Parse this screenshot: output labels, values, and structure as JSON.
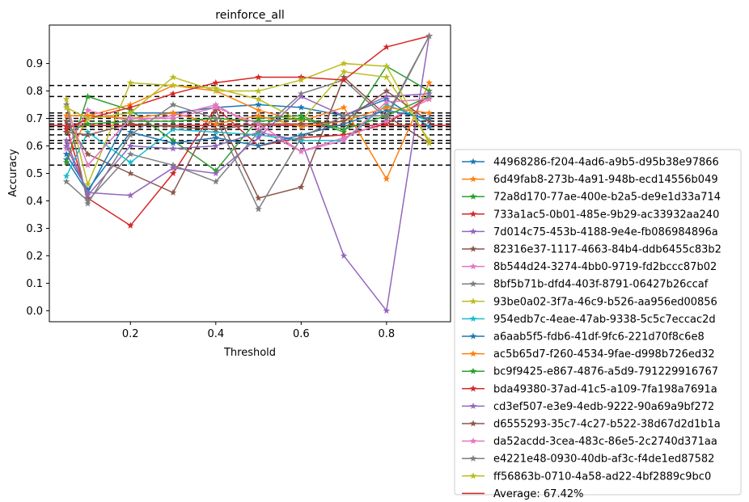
{
  "chart_data": {
    "type": "line",
    "title": "reinforce_all",
    "xlabel": "Threshold",
    "ylabel": "Accuracy",
    "xlim": [
      0.01,
      0.95
    ],
    "ylim": [
      -0.04,
      1.04
    ],
    "x_ticks": [
      0.2,
      0.4,
      0.6,
      0.8
    ],
    "x_tick_labels": [
      "0.2",
      "0.4",
      "0.6",
      "0.8"
    ],
    "y_ticks": [
      0.0,
      0.1,
      0.2,
      0.3,
      0.4,
      0.5,
      0.6,
      0.7,
      0.8,
      0.9
    ],
    "y_tick_labels": [
      "0.0",
      "0.1",
      "0.2",
      "0.3",
      "0.4",
      "0.5",
      "0.6",
      "0.7",
      "0.8",
      "0.9"
    ],
    "grid": false,
    "legend_position": "outside-right",
    "x": [
      0.05,
      0.1,
      0.2,
      0.3,
      0.4,
      0.5,
      0.6,
      0.7,
      0.8,
      0.9
    ],
    "hlines": [
      0.82,
      0.78,
      0.72,
      0.71,
      0.7,
      0.69,
      0.68,
      0.67,
      0.66,
      0.64,
      0.62,
      0.61,
      0.59,
      0.53
    ],
    "series": [
      {
        "name": "44968286-f204-4ad6-a9b5-d95b38e97866",
        "color": "#1f77b4",
        "values": [
          0.55,
          0.43,
          0.72,
          0.72,
          0.74,
          0.75,
          0.74,
          0.71,
          0.77,
          0.67
        ]
      },
      {
        "name": "6d49fab8-273b-4a91-948b-ecd14556b049",
        "color": "#ff7f0e",
        "values": [
          0.54,
          0.71,
          0.75,
          0.82,
          0.8,
          0.73,
          0.69,
          0.74,
          0.48,
          0.83
        ]
      },
      {
        "name": "72a8d170-77ae-400e-b2a5-de9e1d33a714",
        "color": "#2ca02c",
        "values": [
          0.54,
          0.78,
          0.73,
          0.62,
          0.51,
          0.7,
          0.71,
          0.65,
          0.89,
          0.8
        ]
      },
      {
        "name": "733a1ac5-0b01-485e-9b29-ac33932aa240",
        "color": "#d62728",
        "values": [
          0.67,
          0.41,
          0.31,
          0.5,
          0.74,
          0.6,
          0.63,
          0.64,
          0.68,
          0.78
        ]
      },
      {
        "name": "7d014c75-453b-4188-9e4e-fb086984896a",
        "color": "#9467bd",
        "values": [
          0.62,
          0.42,
          0.6,
          0.59,
          0.6,
          0.65,
          0.62,
          0.2,
          0.0,
          1.0
        ]
      },
      {
        "name": "82316e37-1117-4663-84b4-ddb6455c83b2",
        "color": "#8c564b",
        "values": [
          0.69,
          0.57,
          0.5,
          0.43,
          0.73,
          0.41,
          0.45,
          0.85,
          0.71,
          0.61
        ]
      },
      {
        "name": "8b544d24-3274-4bb0-9719-fd2bccc87b02",
        "color": "#e377c2",
        "values": [
          0.59,
          0.73,
          0.69,
          0.71,
          0.75,
          0.66,
          0.58,
          0.63,
          0.69,
          0.77
        ]
      },
      {
        "name": "8bf5b71b-dfd4-403f-8791-06427b26ccaf",
        "color": "#7f7f7f",
        "values": [
          0.47,
          0.4,
          0.57,
          0.53,
          0.47,
          0.65,
          0.79,
          0.84,
          0.7,
          1.0
        ]
      },
      {
        "name": "93be0a02-3f7a-46c9-b526-aa956ed00856",
        "color": "#bcbd22",
        "values": [
          0.77,
          0.46,
          0.83,
          0.82,
          0.81,
          0.77,
          0.69,
          0.87,
          0.85,
          0.62
        ]
      },
      {
        "name": "954edb7c-4eae-47ab-9338-5c5c7eccac2d",
        "color": "#17becf",
        "values": [
          0.49,
          0.65,
          0.54,
          0.66,
          0.65,
          0.64,
          0.62,
          0.62,
          0.75,
          0.69
        ]
      },
      {
        "name": "a6aab5f5-fdb6-41df-9fc6-221d70f8c6e8",
        "color": "#1f77b4",
        "values": [
          0.57,
          0.44,
          0.65,
          0.61,
          0.63,
          0.6,
          0.64,
          0.68,
          0.73,
          0.7
        ]
      },
      {
        "name": "ac5b65d7-f260-4534-9fae-d998b726ed32",
        "color": "#ff7f0e",
        "values": [
          0.71,
          0.71,
          0.7,
          0.72,
          0.68,
          0.71,
          0.67,
          0.69,
          0.74,
          0.72
        ]
      },
      {
        "name": "bc9f9425-e867-4876-a5d9-791229916767",
        "color": "#2ca02c",
        "values": [
          0.65,
          0.68,
          0.69,
          0.69,
          0.7,
          0.69,
          0.7,
          0.66,
          0.71,
          0.78
        ]
      },
      {
        "name": "bda49380-37ad-41c5-a109-7fa198a7691a",
        "color": "#d62728",
        "values": [
          0.66,
          0.7,
          0.74,
          0.79,
          0.83,
          0.85,
          0.85,
          0.84,
          0.96,
          1.0
        ]
      },
      {
        "name": "cd3ef507-e3e9-4edb-9222-90a69a9bf272",
        "color": "#9467bd",
        "values": [
          0.6,
          0.43,
          0.42,
          0.52,
          0.5,
          0.63,
          0.78,
          0.71,
          0.78,
          0.79
        ]
      },
      {
        "name": "d6555293-35c7-4c27-b522-38d67d2d1b1a",
        "color": "#8c564b",
        "values": [
          0.65,
          0.64,
          0.68,
          0.67,
          0.66,
          0.68,
          0.68,
          0.69,
          0.8,
          0.69
        ]
      },
      {
        "name": "da52acdd-3cea-483c-86e5-2c2740d371aa",
        "color": "#e377c2",
        "values": [
          0.74,
          0.53,
          0.7,
          0.7,
          0.74,
          0.68,
          0.58,
          0.62,
          0.76,
          0.77
        ]
      },
      {
        "name": "e4221e48-0930-40db-af3c-f4de1ed87582",
        "color": "#7f7f7f",
        "values": [
          0.75,
          0.39,
          0.64,
          0.75,
          0.7,
          0.37,
          0.63,
          0.71,
          0.71,
          1.0
        ]
      },
      {
        "name": "ff56863b-0710-4a58-ad22-4bf2889c9bc0",
        "color": "#bcbd22",
        "values": [
          0.74,
          0.7,
          0.72,
          0.85,
          0.8,
          0.8,
          0.84,
          0.9,
          0.89,
          0.61
        ]
      }
    ],
    "average": {
      "name": "Average: 67.42%",
      "value": 0.6742,
      "color": "#d62728"
    }
  }
}
